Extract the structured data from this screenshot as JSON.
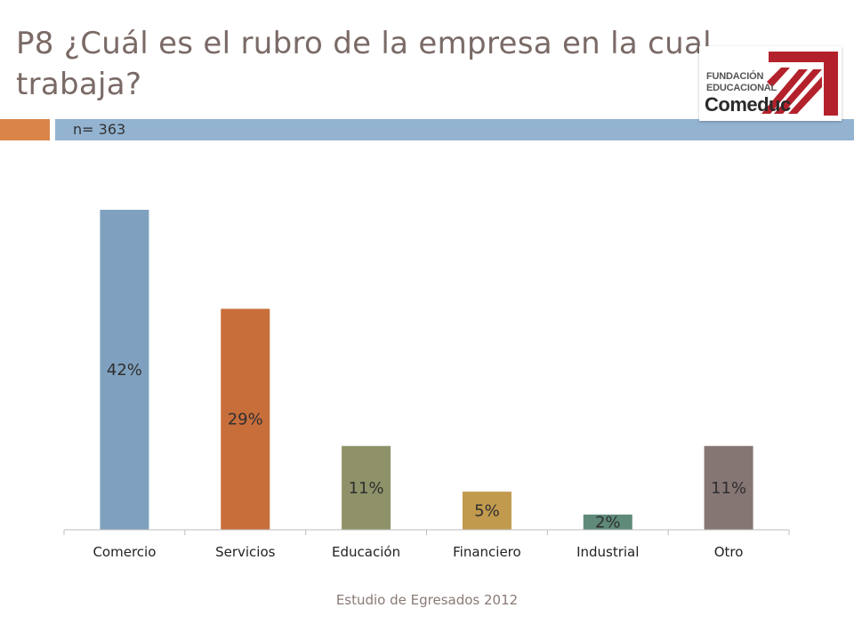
{
  "slide": {
    "title": "P8 ¿Cuál es el rubro de la empresa en la cual trabaja?",
    "sample_size": "n= 363",
    "footer": "Estudio de Egresados 2012",
    "logo": {
      "line1": "FUNDACIÓN",
      "line2": "EDUCACIONAL",
      "line3": "Comeduc"
    }
  },
  "colors": {
    "title": "#7a6a66",
    "accent": "#d9854a",
    "band": "#93b3d1",
    "logo_red": "#b3222c"
  },
  "chart_data": {
    "type": "bar",
    "categories": [
      "Comercio",
      "Servicios",
      "Educación",
      "Financiero",
      "Industrial",
      "Otro"
    ],
    "values": [
      42,
      29,
      11,
      5,
      2,
      11
    ],
    "value_labels": [
      "42%",
      "29%",
      "11%",
      "5%",
      "2%",
      "11%"
    ],
    "colors": [
      "#7fa1bf",
      "#c86e3b",
      "#8f9269",
      "#c19a4e",
      "#5f8a79",
      "#857674"
    ],
    "ylim": [
      0,
      42
    ],
    "grid": false,
    "legend": "none"
  }
}
